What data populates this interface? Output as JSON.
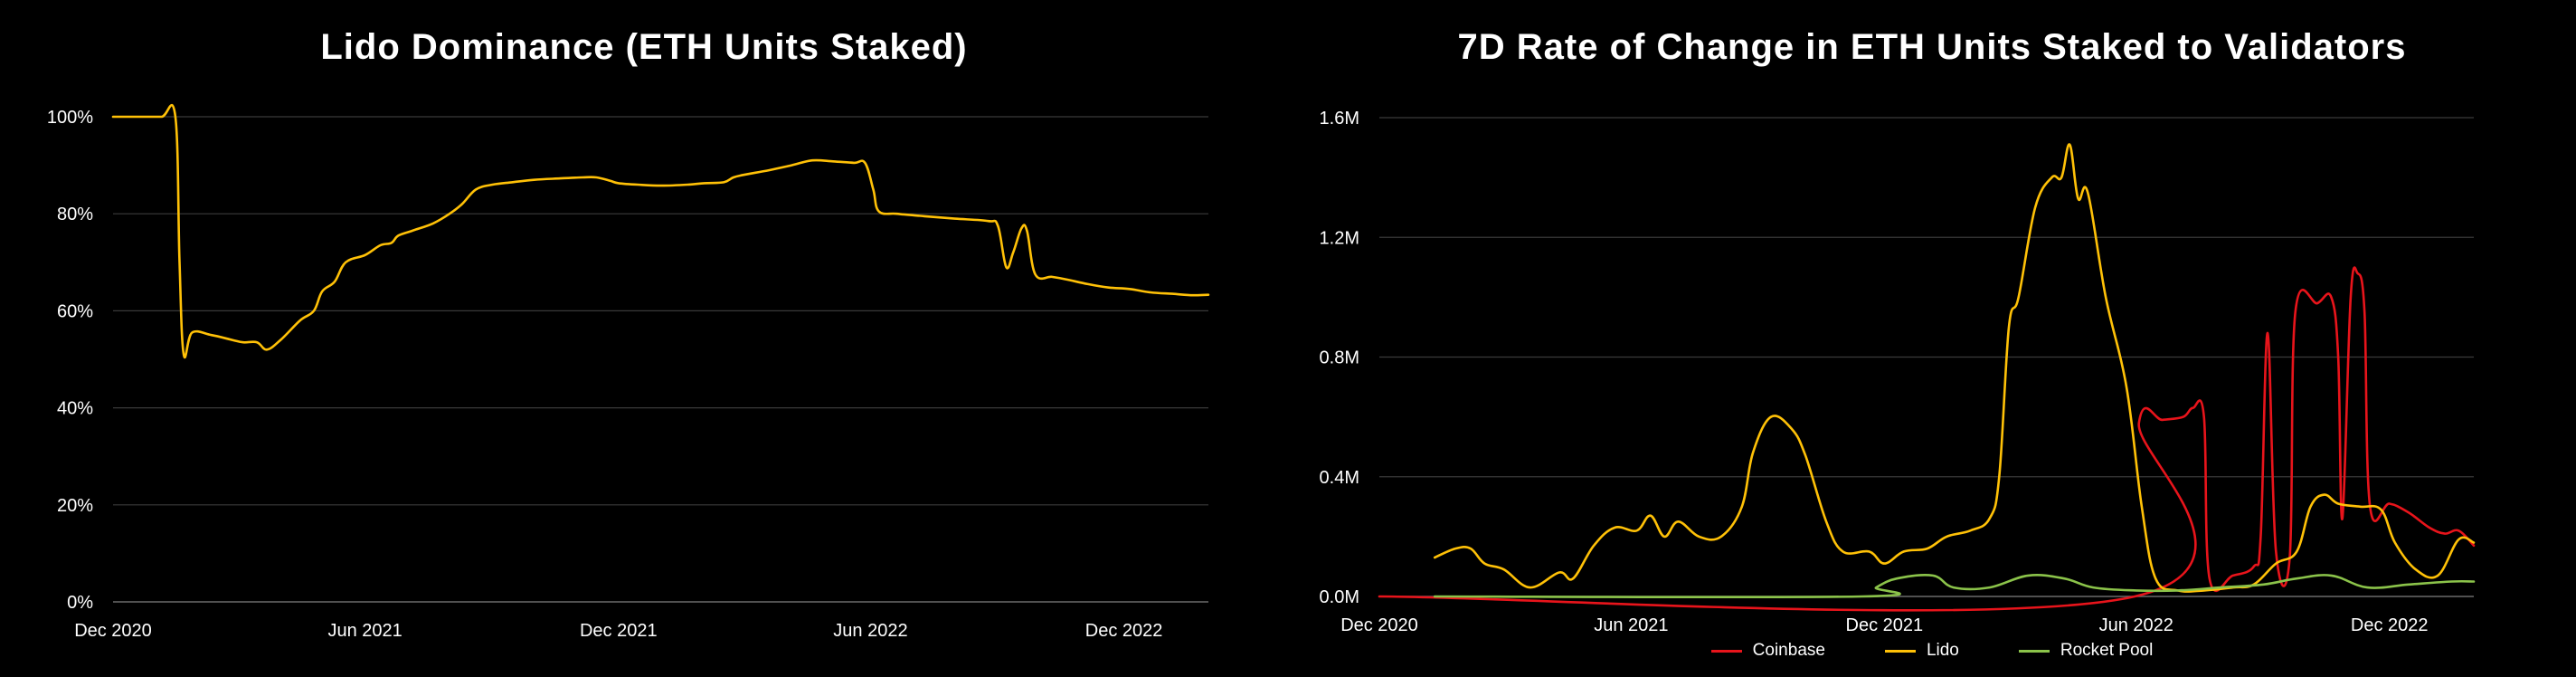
{
  "chart_data": [
    {
      "type": "line",
      "title": "Lido Dominance (ETH Units Staked)",
      "xlabel": "",
      "ylabel": "",
      "ylim": [
        0,
        100
      ],
      "yticks": [
        "0%",
        "20%",
        "40%",
        "60%",
        "80%",
        "100%"
      ],
      "ytick_values": [
        0,
        20,
        40,
        60,
        80,
        100
      ],
      "xticks": [
        "Dec 2020",
        "Jun 2021",
        "Dec 2021",
        "Jun 2022",
        "Dec 2022"
      ],
      "xtick_values": [
        "2020-12-01",
        "2021-06-01",
        "2021-12-01",
        "2022-06-01",
        "2022-12-01"
      ],
      "xlim": [
        "2020-12-01",
        "2023-01-31"
      ],
      "grid": true,
      "series": [
        {
          "color": "#FFC107",
          "points": [
            [
              "2020-12-01",
              100
            ],
            [
              "2020-12-20",
              100
            ],
            [
              "2021-01-05",
              100
            ],
            [
              "2021-01-15",
              100
            ],
            [
              "2021-01-18",
              70
            ],
            [
              "2021-01-21",
              51
            ],
            [
              "2021-01-27",
              55.5
            ],
            [
              "2021-02-10",
              55
            ],
            [
              "2021-02-25",
              54
            ],
            [
              "2021-03-05",
              53.5
            ],
            [
              "2021-03-15",
              53.5
            ],
            [
              "2021-03-22",
              52
            ],
            [
              "2021-04-01",
              54
            ],
            [
              "2021-04-15",
              58
            ],
            [
              "2021-04-25",
              60
            ],
            [
              "2021-05-01",
              64
            ],
            [
              "2021-05-10",
              66
            ],
            [
              "2021-05-18",
              70
            ],
            [
              "2021-06-01",
              71.5
            ],
            [
              "2021-06-12",
              73.5
            ],
            [
              "2021-06-20",
              74
            ],
            [
              "2021-06-25",
              75.5
            ],
            [
              "2021-07-05",
              76.5
            ],
            [
              "2021-07-20",
              78
            ],
            [
              "2021-08-01",
              80
            ],
            [
              "2021-08-10",
              82
            ],
            [
              "2021-08-20",
              85
            ],
            [
              "2021-09-01",
              86
            ],
            [
              "2021-09-15",
              86.5
            ],
            [
              "2021-10-01",
              87
            ],
            [
              "2021-10-20",
              87.3
            ],
            [
              "2021-11-05",
              87.5
            ],
            [
              "2021-11-15",
              87.5
            ],
            [
              "2021-11-25",
              86.8
            ],
            [
              "2021-12-01",
              86.3
            ],
            [
              "2021-12-15",
              86
            ],
            [
              "2022-01-01",
              85.8
            ],
            [
              "2022-01-20",
              86
            ],
            [
              "2022-02-01",
              86.3
            ],
            [
              "2022-02-15",
              86.5
            ],
            [
              "2022-02-22",
              87.5
            ],
            [
              "2022-03-01",
              88
            ],
            [
              "2022-03-20",
              89
            ],
            [
              "2022-04-05",
              90
            ],
            [
              "2022-04-20",
              91
            ],
            [
              "2022-05-05",
              90.8
            ],
            [
              "2022-05-20",
              90.5
            ],
            [
              "2022-05-28",
              90.5
            ],
            [
              "2022-06-03",
              85
            ],
            [
              "2022-06-07",
              80.5
            ],
            [
              "2022-06-20",
              80
            ],
            [
              "2022-07-10",
              79.5
            ],
            [
              "2022-08-01",
              79
            ],
            [
              "2022-08-25",
              78.5
            ],
            [
              "2022-09-01",
              77.5
            ],
            [
              "2022-09-07",
              69
            ],
            [
              "2022-09-12",
              72
            ],
            [
              "2022-09-18",
              77
            ],
            [
              "2022-09-22",
              76.5
            ],
            [
              "2022-09-28",
              67.5
            ],
            [
              "2022-10-10",
              67
            ],
            [
              "2022-10-20",
              66.5
            ],
            [
              "2022-11-05",
              65.5
            ],
            [
              "2022-11-20",
              64.8
            ],
            [
              "2022-12-05",
              64.5
            ],
            [
              "2022-12-20",
              63.8
            ],
            [
              "2023-01-05",
              63.5
            ],
            [
              "2023-01-20",
              63.2
            ],
            [
              "2023-01-31",
              63.3
            ]
          ]
        }
      ]
    },
    {
      "type": "line",
      "title": "7D Rate of Change in ETH Units Staked to Validators",
      "xlabel": "",
      "ylabel": "",
      "ylim": [
        0,
        1600000
      ],
      "yticks": [
        "0.0M",
        "0.4M",
        "0.8M",
        "1.2M",
        "1.6M"
      ],
      "ytick_values": [
        0,
        400000,
        800000,
        1200000,
        1600000
      ],
      "xticks": [
        "Dec 2020",
        "Jun 2021",
        "Dec 2021",
        "Jun 2022",
        "Dec 2022"
      ],
      "xtick_values": [
        "2020-12-01",
        "2021-06-01",
        "2021-12-01",
        "2022-06-01",
        "2022-12-01"
      ],
      "xlim": [
        "2020-12-01",
        "2023-01-31"
      ],
      "grid": true,
      "legend_position": "bottom-center",
      "series": [
        {
          "name": "Coinbase",
          "color": "#E8141B",
          "points": [
            [
              "2020-12-01",
              0
            ],
            [
              "2022-05-31",
              0
            ],
            [
              "2022-06-03",
              580000
            ],
            [
              "2022-06-20",
              590000
            ],
            [
              "2022-07-05",
              600000
            ],
            [
              "2022-07-12",
              630000
            ],
            [
              "2022-07-20",
              600000
            ],
            [
              "2022-07-24",
              60000
            ],
            [
              "2022-08-10",
              70000
            ],
            [
              "2022-08-25",
              100000
            ],
            [
              "2022-08-30",
              200000
            ],
            [
              "2022-09-04",
              880000
            ],
            [
              "2022-09-10",
              150000
            ],
            [
              "2022-09-20",
              130000
            ],
            [
              "2022-09-24",
              950000
            ],
            [
              "2022-10-10",
              980000
            ],
            [
              "2022-10-20",
              1000000
            ],
            [
              "2022-10-25",
              800000
            ],
            [
              "2022-10-28",
              260000
            ],
            [
              "2022-11-03",
              1000000
            ],
            [
              "2022-11-08",
              1080000
            ],
            [
              "2022-11-13",
              950000
            ],
            [
              "2022-11-17",
              300000
            ],
            [
              "2022-12-01",
              310000
            ],
            [
              "2022-12-15",
              280000
            ],
            [
              "2022-12-30",
              230000
            ],
            [
              "2023-01-10",
              210000
            ],
            [
              "2023-01-20",
              220000
            ],
            [
              "2023-01-31",
              170000
            ]
          ]
        },
        {
          "name": "Lido",
          "color": "#FFC107",
          "points": [
            [
              "2021-01-10",
              130000
            ],
            [
              "2021-01-25",
              160000
            ],
            [
              "2021-02-05",
              160000
            ],
            [
              "2021-02-15",
              110000
            ],
            [
              "2021-03-01",
              90000
            ],
            [
              "2021-03-20",
              30000
            ],
            [
              "2021-04-10",
              80000
            ],
            [
              "2021-04-20",
              60000
            ],
            [
              "2021-05-05",
              170000
            ],
            [
              "2021-05-20",
              230000
            ],
            [
              "2021-06-05",
              220000
            ],
            [
              "2021-06-15",
              270000
            ],
            [
              "2021-06-25",
              200000
            ],
            [
              "2021-07-05",
              250000
            ],
            [
              "2021-07-20",
              200000
            ],
            [
              "2021-08-05",
              200000
            ],
            [
              "2021-08-20",
              300000
            ],
            [
              "2021-08-28",
              480000
            ],
            [
              "2021-09-10",
              600000
            ],
            [
              "2021-09-25",
              560000
            ],
            [
              "2021-10-05",
              470000
            ],
            [
              "2021-10-20",
              250000
            ],
            [
              "2021-11-01",
              150000
            ],
            [
              "2021-11-20",
              150000
            ],
            [
              "2021-12-01",
              110000
            ],
            [
              "2021-12-15",
              150000
            ],
            [
              "2022-01-01",
              160000
            ],
            [
              "2022-01-15",
              200000
            ],
            [
              "2022-02-01",
              220000
            ],
            [
              "2022-02-15",
              260000
            ],
            [
              "2022-02-22",
              400000
            ],
            [
              "2022-03-01",
              900000
            ],
            [
              "2022-03-08",
              1000000
            ],
            [
              "2022-03-20",
              1300000
            ],
            [
              "2022-04-01",
              1400000
            ],
            [
              "2022-04-08",
              1400000
            ],
            [
              "2022-04-14",
              1510000
            ],
            [
              "2022-04-20",
              1330000
            ],
            [
              "2022-04-27",
              1350000
            ],
            [
              "2022-05-10",
              1000000
            ],
            [
              "2022-05-25",
              700000
            ],
            [
              "2022-06-05",
              300000
            ],
            [
              "2022-06-15",
              60000
            ],
            [
              "2022-07-01",
              20000
            ],
            [
              "2022-07-20",
              20000
            ],
            [
              "2022-08-10",
              30000
            ],
            [
              "2022-08-25",
              40000
            ],
            [
              "2022-09-10",
              110000
            ],
            [
              "2022-09-25",
              150000
            ],
            [
              "2022-10-05",
              300000
            ],
            [
              "2022-10-15",
              340000
            ],
            [
              "2022-10-25",
              310000
            ],
            [
              "2022-11-10",
              300000
            ],
            [
              "2022-11-25",
              290000
            ],
            [
              "2022-12-05",
              180000
            ],
            [
              "2022-12-20",
              90000
            ],
            [
              "2023-01-05",
              70000
            ],
            [
              "2023-01-20",
              190000
            ],
            [
              "2023-01-31",
              180000
            ]
          ]
        },
        {
          "name": "Rocket Pool",
          "color": "#8BC34A",
          "points": [
            [
              "2021-01-10",
              0
            ],
            [
              "2021-11-15",
              0
            ],
            [
              "2021-11-25",
              30000
            ],
            [
              "2021-12-10",
              60000
            ],
            [
              "2022-01-05",
              70000
            ],
            [
              "2022-01-20",
              30000
            ],
            [
              "2022-02-15",
              30000
            ],
            [
              "2022-03-15",
              70000
            ],
            [
              "2022-04-10",
              60000
            ],
            [
              "2022-05-01",
              30000
            ],
            [
              "2022-06-01",
              20000
            ],
            [
              "2022-07-01",
              20000
            ],
            [
              "2022-08-01",
              30000
            ],
            [
              "2022-09-01",
              40000
            ],
            [
              "2022-09-25",
              60000
            ],
            [
              "2022-10-20",
              70000
            ],
            [
              "2022-11-15",
              30000
            ],
            [
              "2022-12-15",
              40000
            ],
            [
              "2023-01-15",
              50000
            ],
            [
              "2023-01-31",
              50000
            ]
          ]
        }
      ]
    }
  ]
}
